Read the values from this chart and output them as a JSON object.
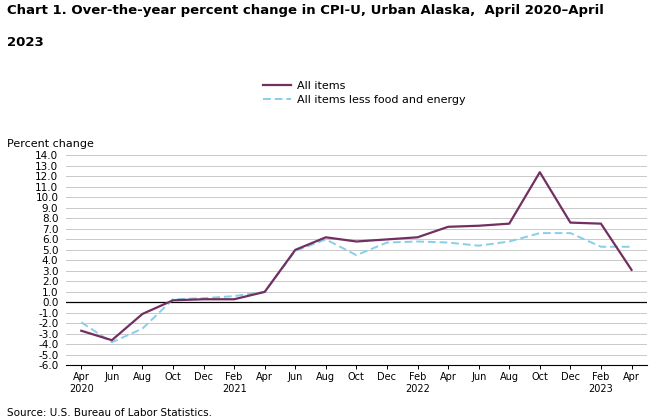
{
  "title_line1": "Chart 1. Over-the-year percent change in CPI-U, Urban Alaska,  April 2020–April",
  "title_line2": "2023",
  "ylabel": "Percent change",
  "source": "Source: U.S. Bureau of Labor Statistics.",
  "ylim": [
    -6.0,
    14.0
  ],
  "yticks": [
    -6.0,
    -5.0,
    -4.0,
    -3.0,
    -2.0,
    -1.0,
    0.0,
    1.0,
    2.0,
    3.0,
    4.0,
    5.0,
    6.0,
    7.0,
    8.0,
    9.0,
    10.0,
    11.0,
    12.0,
    13.0,
    14.0
  ],
  "xtick_labels": [
    "Apr\n2020",
    "Jun",
    "Aug",
    "Oct",
    "Dec",
    "Feb\n2021",
    "Apr",
    "Jun",
    "Aug",
    "Oct",
    "Dec",
    "Feb\n2022",
    "Apr",
    "Jun",
    "Aug",
    "Oct",
    "Dec",
    "Feb\n2023",
    "Apr"
  ],
  "all_items": [
    -2.7,
    -3.6,
    -1.1,
    0.2,
    0.3,
    0.3,
    1.0,
    5.0,
    6.2,
    5.8,
    6.0,
    6.2,
    7.2,
    7.3,
    7.5,
    12.4,
    7.6,
    7.5,
    3.1
  ],
  "all_items_less": [
    -1.9,
    -3.8,
    -2.5,
    0.3,
    0.4,
    0.6,
    1.0,
    4.9,
    6.0,
    4.5,
    5.7,
    5.8,
    5.7,
    5.4,
    5.8,
    6.6,
    6.6,
    5.3,
    5.3
  ],
  "all_items_color": "#722F60",
  "all_items_less_color": "#87CEEB",
  "background_color": "#ffffff"
}
